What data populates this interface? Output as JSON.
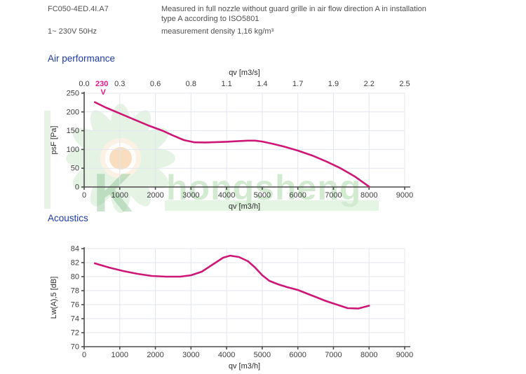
{
  "header": {
    "model": "FC050-4ED.4I.A7",
    "description_line1": "Measured in full nozzle without guard grille in air flow direction A in installation",
    "description_line2": "type A according to ISO5801",
    "power": "1~ 230V 50Hz",
    "density": "measurement density 1,16 kg/m³"
  },
  "sections": {
    "air_performance_title": "Air performance",
    "acoustics_title": "Acoustics"
  },
  "watermark": {
    "text": "hongsheng",
    "logo_letter": "K"
  },
  "colors": {
    "curve": "#ce1677",
    "curve_label": "#e0168c",
    "section_title": "#1b3aa6",
    "grid": "#e1e5ee",
    "axis": "#4b4b4b",
    "watermark_green": "#a6d8a3"
  },
  "chart_data": [
    {
      "type": "line",
      "title": "Air performance",
      "xlabel": "qv [m3/h]",
      "ylabel": "psF [Pa]",
      "x2label": "qv [m3/s]",
      "x2ticks": [
        "0.0",
        "0.3",
        "0.6",
        "0.8",
        "1.1",
        "1.4",
        "1.7",
        "1.9",
        "2.2",
        "2.5"
      ],
      "xlim": [
        0,
        9000
      ],
      "xtick_step": 1000,
      "ylim": [
        0,
        250
      ],
      "ytick_step": 50,
      "grid": true,
      "series": [
        {
          "name": "230 V",
          "show_label": true,
          "x": [
            300,
            600,
            1000,
            1400,
            1800,
            2200,
            2500,
            2800,
            3100,
            3400,
            3700,
            4000,
            4300,
            4600,
            4800,
            5000,
            5300,
            5600,
            6000,
            6400,
            6800,
            7200,
            7600,
            8000
          ],
          "y": [
            226,
            212,
            196,
            180,
            164,
            150,
            137,
            125,
            119,
            118.5,
            119.5,
            120.5,
            122,
            123.5,
            123.5,
            121,
            115,
            108,
            97,
            84,
            68,
            50,
            28,
            1
          ]
        }
      ]
    },
    {
      "type": "line",
      "title": "Acoustics",
      "xlabel": "qv [m3/h]",
      "ylabel": "Lw(A),5 [dB]",
      "xlim": [
        0,
        9000
      ],
      "xtick_step": 1000,
      "ylim": [
        70,
        84
      ],
      "ytick_step": 2,
      "grid": true,
      "series": [
        {
          "name": "230 V",
          "show_label": false,
          "x": [
            300,
            700,
            1100,
            1500,
            1900,
            2300,
            2700,
            3000,
            3300,
            3600,
            3900,
            4100,
            4350,
            4600,
            4800,
            5000,
            5200,
            5450,
            5700,
            6000,
            6400,
            6800,
            7100,
            7400,
            7700,
            8000
          ],
          "y": [
            81.9,
            81.3,
            80.8,
            80.4,
            80.1,
            80.0,
            80.0,
            80.2,
            80.7,
            81.7,
            82.7,
            83.0,
            82.8,
            82.2,
            81.3,
            80.2,
            79.4,
            78.9,
            78.5,
            78.1,
            77.3,
            76.5,
            76.0,
            75.5,
            75.45,
            75.85
          ]
        }
      ]
    }
  ]
}
